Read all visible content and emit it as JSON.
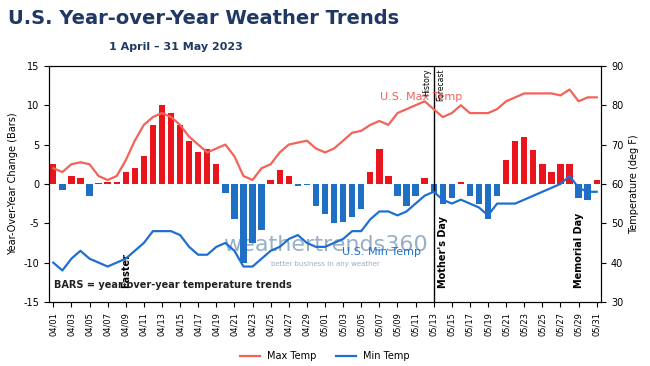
{
  "chart_data": {
    "type": "bar",
    "title": "U.S. Year-over-Year Weather Trends",
    "subtitle": "1 April – 31 May 2023",
    "y_label": "Year-Over-Year Change (Bars)",
    "y2_label": "Temperature (deg F)",
    "categories": [
      "04/01",
      null,
      "04/03",
      null,
      "04/05",
      null,
      "04/07",
      null,
      "04/09",
      null,
      "04/11",
      null,
      "04/13",
      null,
      "04/15",
      null,
      "04/17",
      null,
      "04/19",
      null,
      "04/21",
      null,
      "04/23",
      null,
      "04/25",
      null,
      "04/27",
      null,
      "04/29",
      null,
      "05/01",
      null,
      "05/03",
      null,
      "05/05",
      null,
      "05/07",
      null,
      "05/09",
      null,
      "05/11",
      null,
      "05/13",
      null,
      "05/15",
      null,
      "05/17",
      null,
      "05/19",
      null,
      "05/21",
      null,
      "05/23",
      null,
      "05/25",
      null,
      "05/27",
      null,
      "05/29",
      null,
      "05/31"
    ],
    "values": [
      2.5,
      -0.8,
      1.0,
      0.8,
      -1.5,
      0.1,
      0.2,
      0.2,
      1.5,
      2.0,
      3.5,
      7.5,
      10.0,
      9.0,
      7.5,
      5.5,
      4.0,
      4.5,
      2.5,
      -1.2,
      -4.5,
      -10.0,
      -7.5,
      -5.8,
      0.5,
      1.8,
      1.0,
      -0.3,
      -0.2,
      -2.8,
      -3.8,
      -5.0,
      -4.8,
      -4.2,
      -3.2,
      1.5,
      4.5,
      1.0,
      -1.5,
      -2.8,
      -1.5,
      0.8,
      -1.2,
      -2.5,
      -1.8,
      0.2,
      -1.5,
      -2.5,
      -4.5,
      -1.5,
      3.0,
      5.5,
      6.0,
      4.3,
      2.5,
      1.5,
      2.5,
      2.5,
      -1.8,
      -2.0,
      0.5
    ],
    "colors": [
      "#e8161c",
      "#1f6fc5",
      "#e8161c",
      "#e8161c",
      "#1f6fc5",
      "#e8161c",
      "#e8161c",
      "#e8161c",
      "#e8161c",
      "#e8161c",
      "#e8161c",
      "#e8161c",
      "#e8161c",
      "#e8161c",
      "#e8161c",
      "#e8161c",
      "#e8161c",
      "#e8161c",
      "#e8161c",
      "#1f6fc5",
      "#1f6fc5",
      "#1f6fc5",
      "#1f6fc5",
      "#1f6fc5",
      "#e8161c",
      "#e8161c",
      "#e8161c",
      "#1f6fc5",
      "#1f6fc5",
      "#1f6fc5",
      "#1f6fc5",
      "#1f6fc5",
      "#1f6fc5",
      "#1f6fc5",
      "#1f6fc5",
      "#e8161c",
      "#e8161c",
      "#e8161c",
      "#1f6fc5",
      "#1f6fc5",
      "#1f6fc5",
      "#e8161c",
      "#1f6fc5",
      "#1f6fc5",
      "#1f6fc5",
      "#e8161c",
      "#1f6fc5",
      "#1f6fc5",
      "#1f6fc5",
      "#1f6fc5",
      "#e8161c",
      "#e8161c",
      "#e8161c",
      "#e8161c",
      "#e8161c",
      "#e8161c",
      "#e8161c",
      "#e8161c",
      "#1f6fc5",
      "#1f6fc5",
      "#e8161c"
    ],
    "ylim": [
      -15,
      15
    ],
    "yticks": [
      -15,
      -10,
      -5,
      0,
      5,
      10,
      15
    ],
    "y2lim": [
      30,
      90
    ],
    "y2ticks": [
      30,
      40,
      50,
      60,
      70,
      80,
      90
    ],
    "series": [
      {
        "name": "Max Temp",
        "type": "line",
        "axis": "y2",
        "color": "#f4625a",
        "values": [
          64,
          63,
          65,
          65.5,
          65,
          62,
          61,
          62,
          66,
          71,
          75,
          77,
          78,
          77,
          75,
          72,
          70,
          68,
          69,
          70,
          67,
          62,
          61,
          64,
          65,
          68,
          70,
          70.5,
          71,
          69,
          68,
          69,
          71,
          73,
          73.5,
          75,
          76,
          75,
          78,
          79,
          80,
          81,
          79,
          77,
          78,
          80,
          78,
          78,
          78,
          79,
          81,
          82,
          83,
          83,
          83,
          83,
          82.5,
          84,
          81,
          82,
          82
        ]
      },
      {
        "name": "Min Temp",
        "type": "line",
        "axis": "y2",
        "color": "#1f6fd0",
        "values": [
          40,
          38,
          41,
          43,
          41,
          40,
          39,
          40,
          41,
          43,
          45,
          48,
          48,
          48,
          47,
          44,
          42,
          42,
          44,
          45,
          43,
          39,
          39,
          41,
          43,
          44,
          46,
          47,
          45,
          44,
          44,
          45,
          46,
          48,
          48,
          51,
          53,
          53,
          52,
          53,
          55,
          57,
          58,
          56,
          55,
          56,
          55,
          54,
          52,
          55,
          55,
          55,
          56,
          57,
          58,
          59,
          60,
          62,
          59,
          58,
          58
        ]
      }
    ],
    "series_labels": [
      "U.S. Max Temp",
      "U.S. Min Temp"
    ],
    "events": [
      {
        "text": "Easter",
        "x": 8
      },
      {
        "text": "Mother's Day",
        "x": 43
      },
      {
        "text": "Memorial Day",
        "x": 58
      }
    ],
    "divider": {
      "x": 42,
      "labels": [
        "History",
        "Forecast"
      ]
    },
    "note": "BARS = year-over-year temperature trends",
    "logo": "weathertrends360",
    "tagline": "better business in any weather",
    "grid": false,
    "legend": "lower center"
  }
}
